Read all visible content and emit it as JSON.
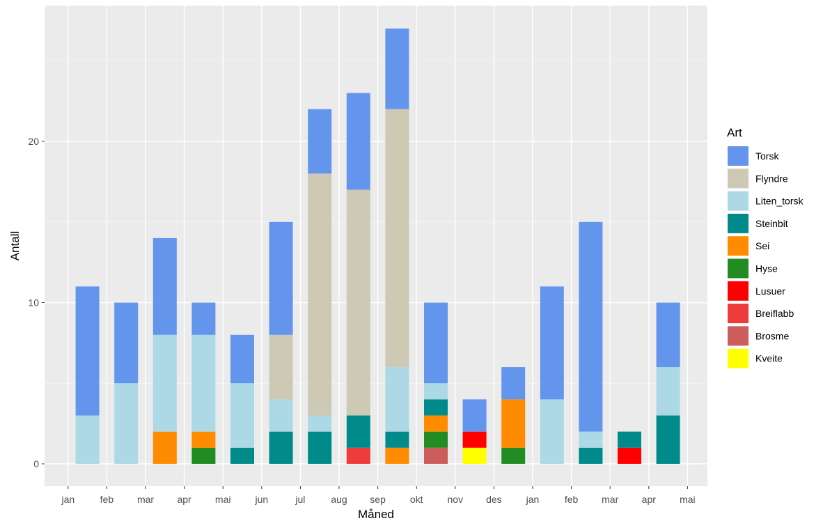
{
  "chart_data": {
    "type": "bar",
    "stacked": true,
    "xlabel": "Måned",
    "ylabel": "Antall",
    "ylim": [
      -0.6,
      27.6
    ],
    "yticks": [
      0,
      10,
      20
    ],
    "grid": true,
    "legend_position": "right",
    "legend_title": "Art",
    "categories": [
      "jan",
      "feb",
      "mar",
      "apr",
      "mai",
      "jun",
      "jul",
      "aug",
      "sep",
      "okt",
      "nov",
      "des",
      "jan",
      "feb",
      "mar",
      "apr",
      "mai"
    ],
    "bar_groups": [
      {
        "label_index": 0,
        "position": 0.5,
        "segments": [
          {
            "species": "Liten_torsk",
            "from": 0,
            "to": 3
          },
          {
            "species": "Torsk",
            "from": 3,
            "to": 11
          }
        ]
      },
      {
        "label_index": 1,
        "position": 1.5,
        "segments": [
          {
            "species": "Liten_torsk",
            "from": 0,
            "to": 5
          },
          {
            "species": "Torsk",
            "from": 5,
            "to": 10
          }
        ]
      },
      {
        "label_index": 2,
        "position": 2.5,
        "segments": [
          {
            "species": "Sei",
            "from": 0,
            "to": 2
          },
          {
            "species": "Liten_torsk",
            "from": 2,
            "to": 8
          },
          {
            "species": "Torsk",
            "from": 8,
            "to": 14
          }
        ]
      },
      {
        "label_index": 3,
        "position": 3.5,
        "segments": [
          {
            "species": "Hyse",
            "from": 0,
            "to": 1
          },
          {
            "species": "Sei",
            "from": 1,
            "to": 2
          },
          {
            "species": "Liten_torsk",
            "from": 2,
            "to": 8
          },
          {
            "species": "Torsk",
            "from": 8,
            "to": 10
          }
        ]
      },
      {
        "label_index": 4,
        "position": 4.5,
        "segments": [
          {
            "species": "Steinbit",
            "from": 0,
            "to": 1
          },
          {
            "species": "Liten_torsk",
            "from": 1,
            "to": 5
          },
          {
            "species": "Torsk",
            "from": 5,
            "to": 8
          }
        ]
      },
      {
        "label_index": 5,
        "position": 5.5,
        "segments": [
          {
            "species": "Steinbit",
            "from": 0,
            "to": 2
          },
          {
            "species": "Liten_torsk",
            "from": 2,
            "to": 4
          },
          {
            "species": "Flyndre",
            "from": 4,
            "to": 8
          },
          {
            "species": "Torsk",
            "from": 8,
            "to": 15
          }
        ]
      },
      {
        "label_index": 6,
        "position": 6.5,
        "segments": [
          {
            "species": "Steinbit",
            "from": 0,
            "to": 2
          },
          {
            "species": "Liten_torsk",
            "from": 2,
            "to": 3
          },
          {
            "species": "Flyndre",
            "from": 3,
            "to": 18
          },
          {
            "species": "Torsk",
            "from": 18,
            "to": 22
          }
        ]
      },
      {
        "label_index": 7,
        "position": 7.5,
        "segments": [
          {
            "species": "Breiflabb",
            "from": 0,
            "to": 1
          },
          {
            "species": "Steinbit",
            "from": 1,
            "to": 3
          },
          {
            "species": "Flyndre",
            "from": 3,
            "to": 17
          },
          {
            "species": "Torsk",
            "from": 17,
            "to": 23
          }
        ]
      },
      {
        "label_index": 8,
        "position": 8.5,
        "segments": [
          {
            "species": "Sei",
            "from": 0,
            "to": 1
          },
          {
            "species": "Steinbit",
            "from": 1,
            "to": 2
          },
          {
            "species": "Liten_torsk",
            "from": 2,
            "to": 6
          },
          {
            "species": "Flyndre",
            "from": 6,
            "to": 22
          },
          {
            "species": "Torsk",
            "from": 22,
            "to": 27
          }
        ]
      },
      {
        "label_index": 9,
        "position": 9.5,
        "segments": [
          {
            "species": "Brosme",
            "from": 0,
            "to": 1
          },
          {
            "species": "Hyse",
            "from": 1,
            "to": 2
          },
          {
            "species": "Sei",
            "from": 2,
            "to": 3
          },
          {
            "species": "Steinbit",
            "from": 3,
            "to": 4
          },
          {
            "species": "Liten_torsk",
            "from": 4,
            "to": 5
          },
          {
            "species": "Torsk",
            "from": 5,
            "to": 10
          }
        ]
      },
      {
        "label_index": 10,
        "position": 10.5,
        "segments": [
          {
            "species": "Kveite",
            "from": 0,
            "to": 1
          },
          {
            "species": "Lusuer",
            "from": 1,
            "to": 2
          },
          {
            "species": "Torsk",
            "from": 2,
            "to": 4
          }
        ]
      },
      {
        "label_index": 11,
        "position": 11.5,
        "segments": [
          {
            "species": "Hyse",
            "from": 0,
            "to": 1
          },
          {
            "species": "Sei",
            "from": 1,
            "to": 4
          },
          {
            "species": "Torsk",
            "from": 4,
            "to": 6
          }
        ]
      },
      {
        "label_index": 12,
        "position": 12.5,
        "segments": [
          {
            "species": "Liten_torsk",
            "from": 0,
            "to": 4
          },
          {
            "species": "Torsk",
            "from": 4,
            "to": 11
          }
        ]
      },
      {
        "label_index": 13,
        "position": 13.5,
        "segments": [
          {
            "species": "Steinbit",
            "from": 0,
            "to": 1
          },
          {
            "species": "Liten_torsk",
            "from": 1,
            "to": 2
          },
          {
            "species": "Torsk",
            "from": 2,
            "to": 15
          }
        ]
      },
      {
        "label_index": 14,
        "position": 14.5,
        "segments": [
          {
            "species": "Lusuer",
            "from": 0,
            "to": 1
          },
          {
            "species": "Steinbit",
            "from": 1,
            "to": 2
          }
        ]
      },
      {
        "label_index": 15,
        "position": 15.5,
        "segments": [
          {
            "species": "Steinbit",
            "from": 0,
            "to": 3
          },
          {
            "species": "Liten_torsk",
            "from": 3,
            "to": 6
          },
          {
            "species": "Torsk",
            "from": 6,
            "to": 10
          }
        ]
      }
    ],
    "species": [
      {
        "name": "Torsk",
        "color": "#6495ED"
      },
      {
        "name": "Flyndre",
        "color": "#CDC9B5"
      },
      {
        "name": "Liten_torsk",
        "color": "#ADD8E6"
      },
      {
        "name": "Steinbit",
        "color": "#008B8B"
      },
      {
        "name": "Sei",
        "color": "#FF8C00"
      },
      {
        "name": "Hyse",
        "color": "#228B22"
      },
      {
        "name": "Lusuer",
        "color": "#FF0000"
      },
      {
        "name": "Breiflabb",
        "color": "#EE3B3B"
      },
      {
        "name": "Brosme",
        "color": "#CD5C5C"
      },
      {
        "name": "Kveite",
        "color": "#FFFF00"
      }
    ],
    "colors": {
      "panel_background": "#EBEBEB",
      "grid_major": "#FFFFFF",
      "grid_minor": "#F5F5F5",
      "tick_text": "#4D4D4D",
      "tick_mark": "#333333"
    }
  }
}
